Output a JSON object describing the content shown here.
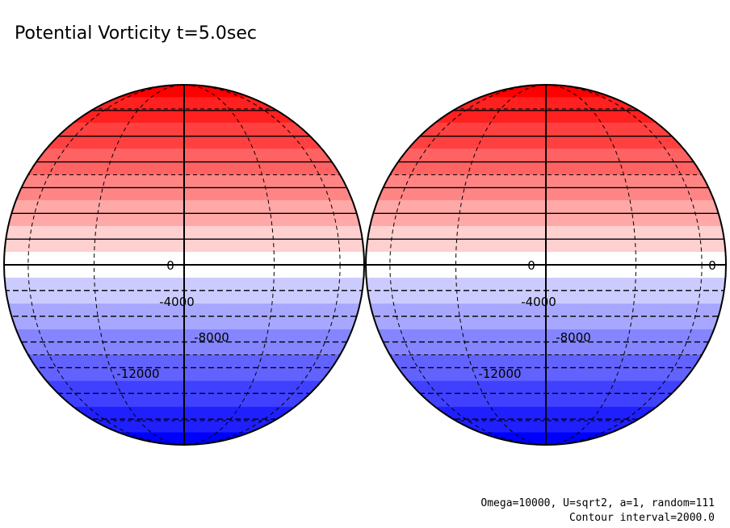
{
  "chart_data": {
    "type": "contour",
    "title": "Potential Vorticity t=5.0sec",
    "field": "potential vorticity",
    "projection": "orthographic",
    "contour_interval": 2000.0,
    "levels": [
      -14000,
      -12000,
      -10000,
      -8000,
      -6000,
      -4000,
      -2000,
      0,
      2000,
      4000,
      6000,
      8000,
      10000,
      12000,
      14000
    ],
    "fill_colors": [
      "#0000ff",
      "#2020ff",
      "#4040ff",
      "#6262ff",
      "#8585ff",
      "#a7a7ff",
      "#cbcbff",
      "#ffffff",
      "#ffd0d0",
      "#ffa8a8",
      "#ff8585",
      "#ff6262",
      "#ff4040",
      "#ff2020",
      "#ff0000"
    ],
    "panels": [
      {
        "name": "left-hemisphere",
        "contour_labels": [
          {
            "text": "0",
            "value": 0
          },
          {
            "text": "-4000",
            "value": -4000
          },
          {
            "text": "-8000",
            "value": -8000
          },
          {
            "text": "-12000",
            "value": -12000
          }
        ]
      },
      {
        "name": "right-hemisphere",
        "contour_labels": [
          {
            "text": "0",
            "value": 0
          },
          {
            "text": "0",
            "value": 0
          },
          {
            "text": "-4000",
            "value": -4000
          },
          {
            "text": "-8000",
            "value": -8000
          },
          {
            "text": "-12000",
            "value": -12000
          }
        ]
      }
    ],
    "footer": {
      "params": "Omega=10000, U=sqrt2, a=1, random=111",
      "interval": "Contour interval=2000.0"
    }
  }
}
